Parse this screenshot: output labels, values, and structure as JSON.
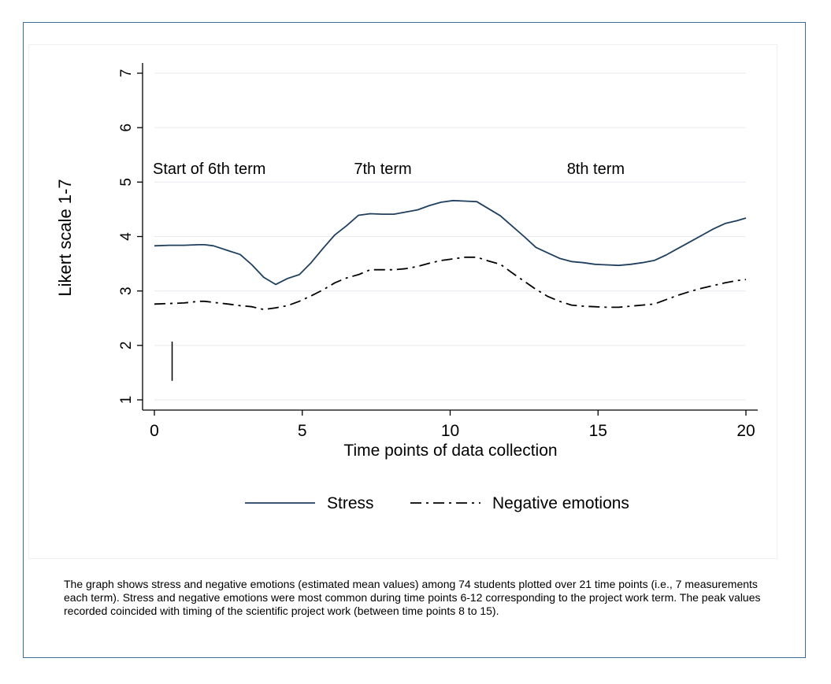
{
  "chart_data": {
    "type": "line",
    "title": "",
    "xlabel": "Time points of data collection",
    "ylabel": "Likert scale 1-7",
    "xlim": [
      0,
      20
    ],
    "ylim": [
      1,
      7
    ],
    "x_ticks": [
      0,
      5,
      10,
      15,
      20
    ],
    "y_ticks": [
      1,
      2,
      3,
      4,
      5,
      6,
      7
    ],
    "grid": true,
    "legend_position": "bottom",
    "series": [
      {
        "name": "Stress",
        "style": "solid",
        "color": "#1f3f5f",
        "x": [
          0,
          0.5,
          1,
          1.5,
          1.7,
          2,
          2.5,
          2.9,
          3.3,
          3.7,
          4.1,
          4.5,
          4.9,
          5.3,
          5.7,
          6.1,
          6.5,
          6.9,
          7.3,
          7.7,
          8.1,
          8.5,
          8.9,
          9.3,
          9.7,
          10.1,
          10.5,
          10.9,
          11.3,
          11.7,
          12.1,
          12.5,
          12.9,
          13.3,
          13.7,
          14.1,
          14.5,
          14.9,
          15.3,
          15.7,
          16.1,
          16.5,
          16.9,
          17.3,
          17.7,
          18.1,
          18.5,
          18.9,
          19.3,
          19.7,
          20
        ],
        "values": [
          3.83,
          3.84,
          3.84,
          3.85,
          3.85,
          3.83,
          3.74,
          3.67,
          3.48,
          3.25,
          3.12,
          3.23,
          3.3,
          3.52,
          3.78,
          4.03,
          4.2,
          4.39,
          4.42,
          4.41,
          4.41,
          4.45,
          4.49,
          4.57,
          4.63,
          4.66,
          4.65,
          4.64,
          4.51,
          4.38,
          4.19,
          4.0,
          3.8,
          3.7,
          3.6,
          3.54,
          3.52,
          3.49,
          3.48,
          3.47,
          3.49,
          3.52,
          3.56,
          3.66,
          3.78,
          3.9,
          4.02,
          4.14,
          4.24,
          4.29,
          4.34
        ]
      },
      {
        "name": "Negative emotions",
        "style": "dash-dot",
        "color": "#000000",
        "x": [
          0,
          0.5,
          1,
          1.5,
          1.7,
          2,
          2.5,
          2.9,
          3.3,
          3.7,
          4.1,
          4.5,
          4.9,
          5.3,
          5.7,
          6.1,
          6.5,
          6.9,
          7.3,
          7.7,
          8.1,
          8.5,
          8.9,
          9.3,
          9.7,
          10.1,
          10.5,
          10.9,
          11.3,
          11.7,
          12.1,
          12.5,
          12.9,
          13.3,
          13.7,
          14.1,
          14.5,
          14.9,
          15.3,
          15.7,
          16.1,
          16.5,
          16.9,
          17.3,
          17.7,
          18.1,
          18.5,
          18.9,
          19.3,
          19.7,
          20
        ],
        "values": [
          2.76,
          2.77,
          2.78,
          2.81,
          2.81,
          2.79,
          2.76,
          2.73,
          2.71,
          2.66,
          2.69,
          2.73,
          2.81,
          2.91,
          3.02,
          3.15,
          3.24,
          3.3,
          3.39,
          3.39,
          3.39,
          3.41,
          3.45,
          3.51,
          3.56,
          3.59,
          3.62,
          3.62,
          3.55,
          3.49,
          3.33,
          3.18,
          3.03,
          2.9,
          2.81,
          2.74,
          2.72,
          2.71,
          2.7,
          2.7,
          2.72,
          2.74,
          2.76,
          2.84,
          2.92,
          2.99,
          3.05,
          3.1,
          3.15,
          3.19,
          3.21
        ]
      }
    ],
    "annotations": [
      {
        "text": "Start of 6th term",
        "x": 0,
        "y": 5.25
      },
      {
        "text": "7th term",
        "x": 6.8,
        "y": 5.25
      },
      {
        "text": "8th term",
        "x": 14,
        "y": 5.25
      }
    ],
    "marker": {
      "x": 0.6,
      "y_from": 1.35,
      "y_to": 2.07
    }
  },
  "caption": "The graph shows stress and negative emotions (estimated mean values) among 74 students plotted over 21 time points (i.e., 7 measurements each term). Stress and negative emotions were most common during time points 6-12 corresponding to the project work term.  The peak values recorded coincided with timing of the scientific project work (between time points 8 to 15)."
}
